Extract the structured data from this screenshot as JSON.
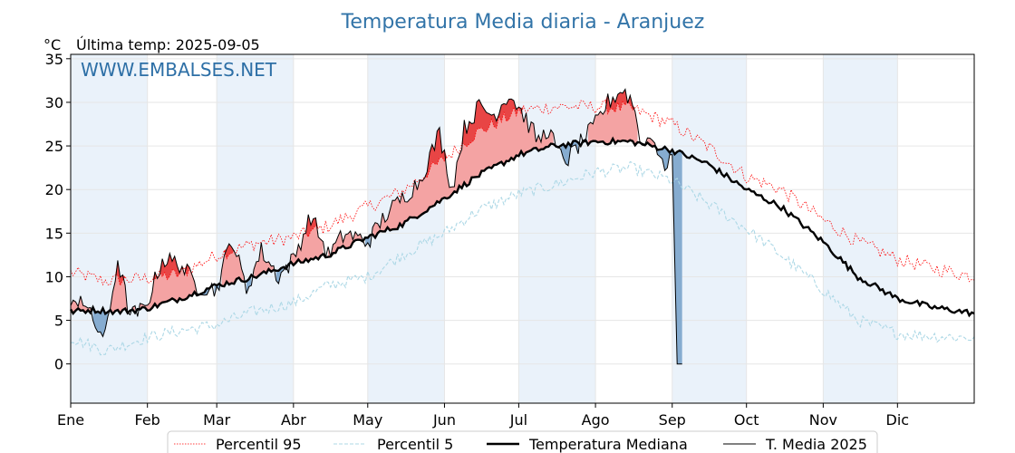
{
  "chart_data": {
    "type": "line",
    "title": "Temperatura Media diaria - Aranjuez",
    "ylabel": "°C",
    "subtitle": "Última temp: 2025-09-05",
    "watermark": "WWW.EMBALSES.NET",
    "months": [
      "Ene",
      "Feb",
      "Mar",
      "Abr",
      "May",
      "Jun",
      "Jul",
      "Ago",
      "Sep",
      "Oct",
      "Nov",
      "Dic"
    ],
    "x_unit": "día del año",
    "xlim": [
      1,
      366
    ],
    "ylim": [
      -4.5,
      35.5
    ],
    "yticks": [
      0,
      5,
      10,
      15,
      20,
      25,
      30,
      35
    ],
    "grid": true,
    "legend_position": "bottom",
    "colors": {
      "p95": "#ff0000",
      "p5": "#add8e6",
      "median": "#000000",
      "current": "#000000",
      "above_fill": "#f4a3a3",
      "above_fill_strong": "#e84545",
      "below_fill": "#86acd0",
      "below_fill_strong": "#2e6da4",
      "shade": "#eaf2fa"
    },
    "series": [
      {
        "key": "p95",
        "name": "Percentil 95",
        "style": "dotted",
        "x": [
          1,
          15,
          31,
          45,
          60,
          75,
          91,
          105,
          121,
          135,
          152,
          165,
          182,
          196,
          213,
          227,
          244,
          258,
          274,
          288,
          305,
          319,
          335,
          349,
          366
        ],
        "y": [
          10.5,
          9.5,
          9.8,
          10.3,
          12.5,
          13.8,
          14.5,
          15.8,
          18.0,
          19.8,
          23.5,
          26.5,
          29.0,
          29.5,
          29.5,
          29.3,
          27.5,
          25.0,
          21.5,
          20.0,
          16.5,
          14.0,
          12.0,
          11.0,
          10.0
        ]
      },
      {
        "key": "p5",
        "name": "Percentil 5",
        "style": "dashed",
        "x": [
          1,
          15,
          31,
          45,
          60,
          75,
          91,
          105,
          121,
          135,
          152,
          165,
          182,
          196,
          213,
          227,
          244,
          258,
          274,
          288,
          305,
          319,
          335,
          349,
          366
        ],
        "y": [
          3.0,
          1.5,
          3.0,
          3.8,
          4.5,
          6.0,
          7.0,
          9.0,
          10.0,
          12.5,
          15.0,
          17.5,
          19.5,
          20.5,
          22.0,
          22.5,
          21.0,
          18.5,
          15.5,
          12.5,
          8.5,
          5.0,
          3.5,
          3.2,
          3.0
        ]
      },
      {
        "key": "median",
        "name": "Temperatura Mediana",
        "style": "thick",
        "x": [
          1,
          10,
          20,
          31,
          45,
          60,
          75,
          91,
          105,
          121,
          135,
          152,
          165,
          182,
          196,
          213,
          227,
          244,
          258,
          274,
          288,
          305,
          319,
          335,
          349,
          366
        ],
        "y": [
          6.0,
          6.2,
          6.0,
          6.3,
          7.5,
          9.0,
          10.0,
          11.5,
          12.5,
          14.5,
          16.0,
          19.0,
          21.5,
          24.0,
          25.0,
          25.5,
          25.5,
          24.5,
          23.0,
          20.0,
          18.0,
          14.0,
          10.0,
          7.5,
          6.5,
          5.8
        ]
      },
      {
        "key": "current",
        "name": "T. Media 2025",
        "style": "thin",
        "x": [
          1,
          5,
          10,
          15,
          20,
          25,
          31,
          38,
          45,
          52,
          60,
          66,
          72,
          78,
          85,
          91,
          98,
          105,
          112,
          121,
          128,
          135,
          142,
          150,
          155,
          160,
          166,
          172,
          178,
          182,
          186,
          190,
          194,
          198,
          202,
          206,
          212,
          218,
          224,
          228,
          232,
          236,
          240,
          244,
          246,
          248
        ],
        "y": [
          6.0,
          8.0,
          4.8,
          3.0,
          12.0,
          5.5,
          6.3,
          12.0,
          11.5,
          9.0,
          8.5,
          14.5,
          8.5,
          13.0,
          10.0,
          12.0,
          17.0,
          12.5,
          15.0,
          14.0,
          17.0,
          19.0,
          21.0,
          26.5,
          20.0,
          27.0,
          29.5,
          28.5,
          31.0,
          29.5,
          27.5,
          25.5,
          27.0,
          24.0,
          23.5,
          25.0,
          27.0,
          30.0,
          31.5,
          30.0,
          25.0,
          26.5,
          22.5,
          24.0,
          0.0,
          0.0
        ]
      }
    ]
  }
}
